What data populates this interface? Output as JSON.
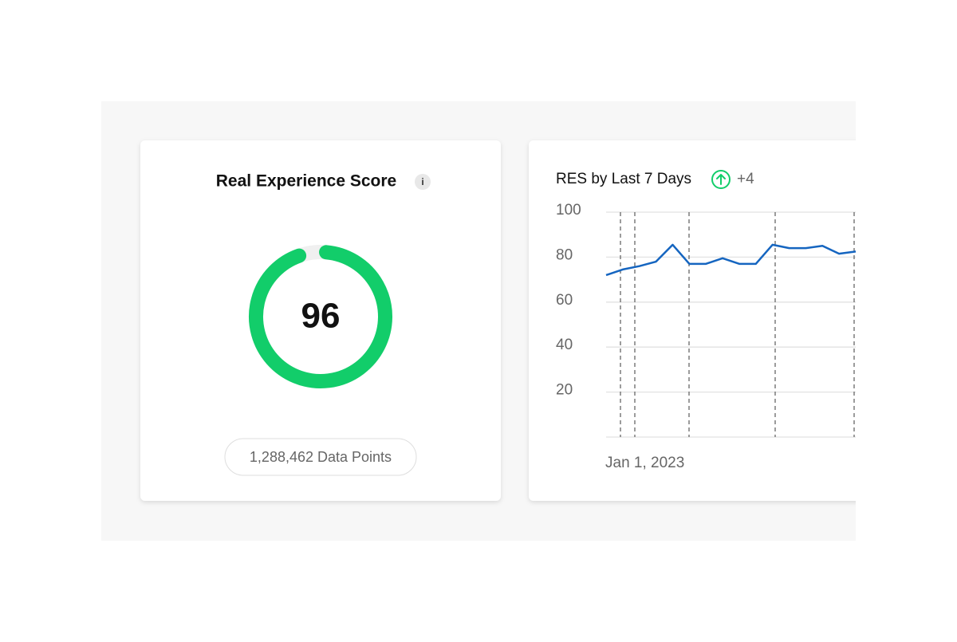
{
  "score_card": {
    "title": "Real Experience Score",
    "info_icon": "i",
    "score": 96,
    "range": [
      0,
      100
    ],
    "color": "#12cd6a",
    "data_points": "1,288,462 Data Points"
  },
  "chart_data": {
    "type": "line",
    "title": "RES by Last 7 Days",
    "change": "+4",
    "x_label": "Jan 1, 2023",
    "categories": [
      null,
      null,
      null,
      null,
      null,
      null,
      null,
      null,
      null,
      null,
      null,
      null,
      null,
      null,
      null,
      null
    ],
    "series": [
      {
        "color": "#1565c0",
        "values": [
          72,
          74.5,
          76,
          78,
          85.5,
          77,
          77,
          79.5,
          77,
          77,
          85.5,
          84,
          84,
          85,
          81.5,
          82.5
        ]
      }
    ],
    "ylim": [
      0,
      100
    ],
    "yticks": [
      20,
      40,
      60,
      80,
      100
    ],
    "grid": true
  }
}
